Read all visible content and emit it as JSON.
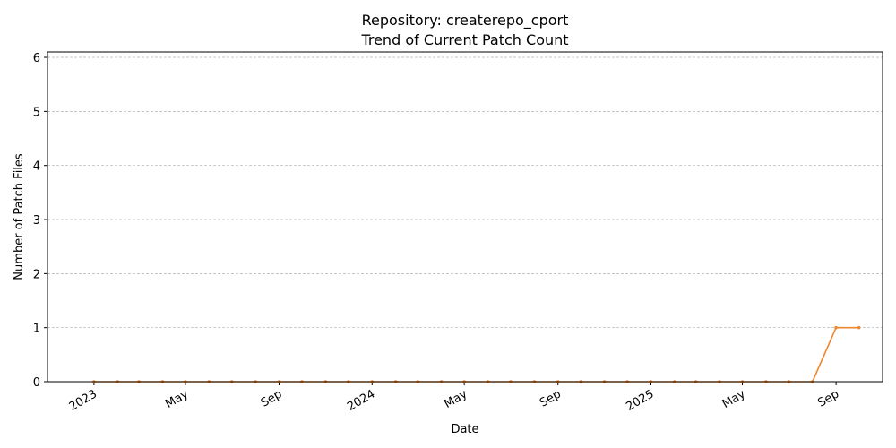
{
  "chart_data": {
    "type": "line",
    "title": "Repository: createrepo_cport",
    "subtitle": "Trend of Current Patch Count",
    "xlabel": "Date",
    "ylabel": "Number of Patch Files",
    "ylim": [
      0,
      6.1
    ],
    "yticks": [
      "0",
      "1",
      "2",
      "3",
      "4",
      "5",
      "6"
    ],
    "xtick_labels": [
      {
        "date": "2023-01-01",
        "label": "2023"
      },
      {
        "date": "2023-05-01",
        "label": "May"
      },
      {
        "date": "2023-09-01",
        "label": "Sep"
      },
      {
        "date": "2024-01-01",
        "label": "2024"
      },
      {
        "date": "2024-05-01",
        "label": "May"
      },
      {
        "date": "2024-09-01",
        "label": "Sep"
      },
      {
        "date": "2025-01-01",
        "label": "2025"
      },
      {
        "date": "2025-05-01",
        "label": "May"
      },
      {
        "date": "2025-09-01",
        "label": "Sep"
      }
    ],
    "grid": "y-dashed",
    "color": "#f0862e",
    "series": [
      {
        "x": [
          "2023-01-01",
          "2023-02-01",
          "2023-03-01",
          "2023-04-01",
          "2023-05-01",
          "2023-06-01",
          "2023-07-01",
          "2023-08-01",
          "2023-09-01",
          "2023-10-01",
          "2023-11-01",
          "2023-12-01",
          "2024-01-01",
          "2024-02-01",
          "2024-03-01",
          "2024-04-01",
          "2024-05-01",
          "2024-06-01",
          "2024-07-01",
          "2024-08-01",
          "2024-09-01",
          "2024-10-01",
          "2024-11-01",
          "2024-12-01",
          "2025-01-01",
          "2025-02-01",
          "2025-03-01",
          "2025-04-01",
          "2025-05-01",
          "2025-06-01",
          "2025-07-01",
          "2025-08-01",
          "2025-09-01",
          "2025-10-01"
        ],
        "y": [
          0,
          0,
          0,
          0,
          0,
          0,
          0,
          0,
          0,
          0,
          0,
          0,
          0,
          0,
          0,
          0,
          0,
          0,
          0,
          0,
          0,
          0,
          0,
          0,
          0,
          0,
          0,
          0,
          0,
          0,
          0,
          0,
          1,
          1
        ]
      }
    ]
  }
}
